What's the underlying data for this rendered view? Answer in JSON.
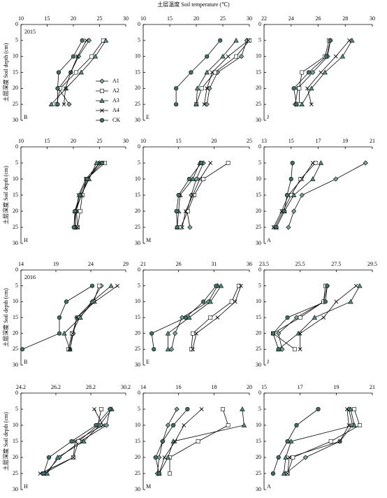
{
  "title": "土层温度 Soil temperature (℃)",
  "ylabel": "土层深度 Soil depth (cm)",
  "legend": [
    {
      "name": "A1",
      "color": "#7aa39a"
    },
    {
      "name": "A2",
      "color": "#ffffff"
    },
    {
      "name": "A3",
      "color": "#4e8f83"
    },
    {
      "name": "A4",
      "color": "#000000"
    },
    {
      "name": "CK",
      "color": "#3f6f66"
    }
  ],
  "chart_data": [
    {
      "type": "line",
      "label": "B",
      "year": "2015",
      "y": [
        5,
        10,
        15,
        20,
        25
      ],
      "xlim": [
        10,
        30
      ],
      "xticks": [
        10,
        15,
        20,
        25,
        30
      ],
      "ylim": [
        0,
        30
      ],
      "yticks": [
        0,
        5,
        10,
        15,
        20,
        25,
        30
      ],
      "series": [
        [
          23,
          21,
          19.5,
          17.2,
          19.2
        ],
        [
          25.7,
          23.5,
          20.5,
          17.5,
          16.8
        ],
        [
          26.2,
          24.2,
          21.5,
          18.6,
          15.8
        ],
        [
          22.5,
          20.8,
          19.5,
          18.5,
          18.2
        ],
        [
          21.7,
          20,
          17.2,
          17,
          17
        ]
      ]
    },
    {
      "type": "line",
      "label": "E",
      "y": [
        5,
        10,
        15,
        20,
        25
      ],
      "xlim": [
        10,
        30
      ],
      "xticks": [
        10,
        15,
        20,
        25,
        30
      ],
      "ylim": [
        0,
        30
      ],
      "yticks": [
        0,
        5,
        10,
        15,
        20,
        25,
        30
      ],
      "series": [
        [
          29.5,
          28.5,
          24,
          22.5,
          22
        ],
        [
          30,
          27.5,
          23.5,
          21,
          20
        ],
        [
          27.5,
          25,
          22,
          20.2,
          20
        ],
        [
          29.8,
          26,
          23,
          22,
          21.5
        ],
        [
          24.5,
          22,
          19,
          16.2,
          16.2
        ]
      ]
    },
    {
      "type": "line",
      "label": "J",
      "y": [
        5,
        10,
        15,
        20,
        25
      ],
      "xlim": [
        22,
        30
      ],
      "xticks": [
        22,
        24,
        26,
        28,
        30
      ],
      "ylim": [
        0,
        30
      ],
      "yticks": [
        0,
        5,
        10,
        15,
        20,
        25,
        30
      ],
      "series": [
        [
          26.9,
          26.7,
          25.6,
          24.5,
          24.3
        ],
        [
          26.8,
          26.5,
          24.8,
          24.6,
          24.6
        ],
        [
          28.5,
          27.8,
          26.5,
          25.5,
          24.8
        ],
        [
          28.3,
          27.3,
          26.2,
          25.2,
          25.5
        ],
        [
          26.9,
          26.6,
          25.3,
          24.2,
          24.4
        ]
      ]
    },
    {
      "type": "line",
      "label": "H",
      "y": [
        5,
        10,
        15,
        20,
        25
      ],
      "xlim": [
        10,
        30
      ],
      "xticks": [
        10,
        15,
        20,
        25,
        30
      ],
      "ylim": [
        0,
        30
      ],
      "yticks": [
        0,
        5,
        10,
        15,
        20,
        25,
        30
      ],
      "series": [
        [
          25,
          22.8,
          21.5,
          20.5,
          20.3
        ],
        [
          26,
          22.5,
          21.7,
          21.3,
          20.8
        ],
        [
          24.4,
          23,
          21.5,
          20.3,
          20.4
        ],
        [
          25,
          22.4,
          21,
          20.6,
          20.8
        ],
        [
          25.5,
          22.6,
          21.2,
          20.3,
          20.1
        ]
      ]
    },
    {
      "type": "line",
      "label": "M",
      "y": [
        5,
        10,
        15,
        20,
        25
      ],
      "xlim": [
        10,
        25
      ],
      "xticks": [
        10,
        15,
        20,
        25
      ],
      "ylim": [
        0,
        30
      ],
      "yticks": [
        0,
        5,
        10,
        15,
        20,
        25,
        30
      ],
      "series": [
        [
          18.5,
          17.5,
          16.8,
          16.2,
          16.6
        ],
        [
          22,
          18.5,
          17.2,
          16.3,
          15.3
        ],
        [
          18,
          17,
          15.2,
          15,
          14.8
        ],
        [
          19.5,
          18,
          17,
          16,
          15.5
        ],
        [
          18.2,
          16.5,
          15,
          14.7,
          14.8
        ]
      ]
    },
    {
      "type": "line",
      "label": "A",
      "y": [
        5,
        10,
        15,
        20,
        25
      ],
      "xlim": [
        13,
        21
      ],
      "xticks": [
        13,
        15,
        17,
        19,
        21
      ],
      "ylim": [
        0,
        30
      ],
      "yticks": [
        0,
        5,
        10,
        15,
        20,
        25,
        30
      ],
      "series": [
        [
          20.5,
          18.3,
          15.8,
          15.2,
          14.8
        ],
        [
          16.8,
          15.7,
          15,
          14.4,
          13.8
        ],
        [
          17.2,
          16.6,
          15.2,
          14.5,
          13.9
        ],
        [
          16.6,
          15.8,
          14.8,
          14.3,
          13.7
        ],
        [
          15.1,
          15,
          14.7,
          14.5,
          13.9
        ]
      ]
    },
    {
      "type": "line",
      "label": "B",
      "year": "2016",
      "y": [
        5,
        10,
        15,
        20,
        25
      ],
      "xlim": [
        14,
        29
      ],
      "xticks": [
        14,
        19,
        24,
        29
      ],
      "ylim": [
        0,
        30
      ],
      "yticks": [
        0,
        5,
        10,
        15,
        20,
        25,
        30
      ],
      "series": [
        [
          25.5,
          24.2,
          22,
          21.5,
          21
        ],
        [
          25.2,
          24.4,
          22.4,
          21.3,
          20.8
        ],
        [
          26.9,
          24.2,
          22.5,
          20.2,
          21
        ],
        [
          27.8,
          24.6,
          22,
          21.4,
          21
        ],
        [
          24.2,
          20.5,
          19.5,
          19.5,
          14.2
        ]
      ]
    },
    {
      "type": "line",
      "label": "E",
      "y": [
        5,
        10,
        15,
        20,
        25
      ],
      "xlim": [
        21,
        36
      ],
      "xticks": [
        21,
        26,
        31,
        36
      ],
      "ylim": [
        0,
        30
      ],
      "yticks": [
        0,
        5,
        10,
        15,
        20,
        25,
        30
      ],
      "series": [
        [
          31.5,
          30.2,
          26.5,
          25.5,
          25
        ],
        [
          34.5,
          33.5,
          30.5,
          28,
          27.8
        ],
        [
          32,
          30.5,
          27.5,
          24.5,
          24.5
        ],
        [
          34.8,
          34,
          31.5,
          28.5,
          28
        ],
        [
          31.3,
          29.5,
          27,
          22.2,
          22.5
        ]
      ]
    },
    {
      "type": "line",
      "label": "J",
      "y": [
        5,
        10,
        15,
        20,
        25
      ],
      "xlim": [
        23.5,
        29.5
      ],
      "xticks": [
        23.5,
        25.5,
        27.5,
        29.5
      ],
      "ylim": [
        0,
        30
      ],
      "yticks": [
        0,
        5,
        10,
        15,
        20,
        25,
        30
      ],
      "series": [
        [
          27,
          26.8,
          25.3,
          24.3,
          24.5
        ],
        [
          26.9,
          26.8,
          25.5,
          24,
          25.2
        ],
        [
          28.8,
          28.3,
          26.3,
          25.4,
          24.3
        ],
        [
          28.6,
          27.5,
          26.8,
          25.5,
          25.5
        ],
        [
          27,
          26.9,
          24.8,
          24,
          24.3
        ]
      ]
    },
    {
      "type": "line",
      "label": "H",
      "y": [
        5,
        10,
        15,
        20,
        25
      ],
      "xlim": [
        24.2,
        30.2
      ],
      "xticks": [
        24.2,
        26.2,
        28.2,
        30.2
      ],
      "ylim": [
        0,
        30
      ],
      "yticks": [
        0,
        5,
        10,
        15,
        20,
        25,
        30
      ],
      "series": [
        [
          29.3,
          29.1,
          27.6,
          26.4,
          25.6
        ],
        [
          28.8,
          28.6,
          27.5,
          27.2,
          25.5
        ],
        [
          29.4,
          28.7,
          27.8,
          26.3,
          25.7
        ],
        [
          28.4,
          28.9,
          27.3,
          27.2,
          25.3
        ],
        [
          29.3,
          28.5,
          27.1,
          25.8,
          25.5
        ]
      ]
    },
    {
      "type": "line",
      "label": "M",
      "y": [
        5,
        10,
        15,
        20,
        25
      ],
      "xlim": [
        14,
        20
      ],
      "xticks": [
        14,
        16,
        18,
        20
      ],
      "ylim": [
        0,
        30
      ],
      "yticks": [
        0,
        5,
        10,
        15,
        20,
        25,
        30
      ],
      "series": [
        [
          15.9,
          15.4,
          15.1,
          14.9,
          14.8
        ],
        [
          18.5,
          18.8,
          17.1,
          15.5,
          15.5
        ],
        [
          19.6,
          19.7,
          15.7,
          15.4,
          14.9
        ],
        [
          17.3,
          16.3,
          15.8,
          15.2,
          14.9
        ],
        [
          16.5,
          15.7,
          15.1,
          14.7,
          14.9
        ]
      ]
    },
    {
      "type": "line",
      "label": "A",
      "y": [
        5,
        10,
        15,
        20,
        25
      ],
      "xlim": [
        15,
        21
      ],
      "xticks": [
        15,
        17,
        19,
        21
      ],
      "ylim": [
        0,
        30
      ],
      "yticks": [
        0,
        5,
        10,
        15,
        20,
        25,
        30
      ],
      "series": [
        [
          19.7,
          19.9,
          19.2,
          17.3,
          16.2
        ],
        [
          20,
          20.3,
          18.7,
          16.6,
          16.3
        ],
        [
          19.8,
          20,
          16.5,
          16.2,
          16.1
        ],
        [
          19.6,
          19.7,
          19.2,
          16.4,
          16.3
        ],
        [
          18,
          16.8,
          16.3,
          15.8,
          15.5
        ]
      ]
    }
  ]
}
